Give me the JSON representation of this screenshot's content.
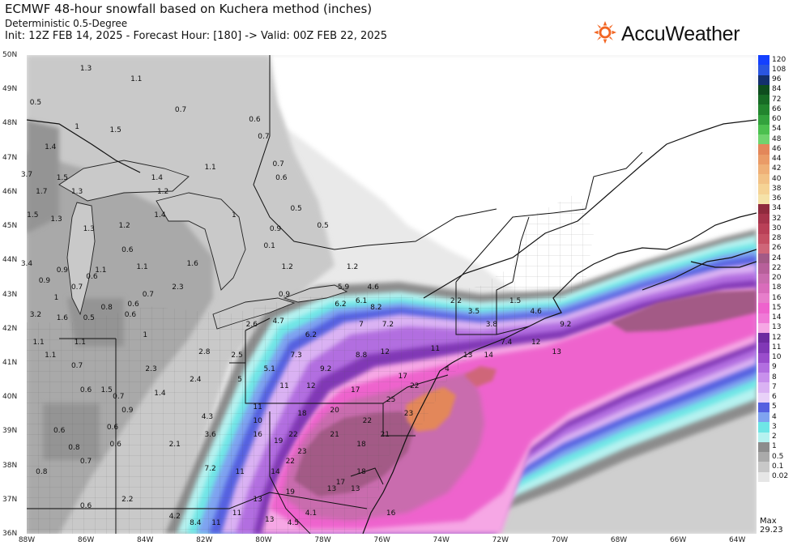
{
  "header": {
    "title": "ECMWF 48-hour snowfall based on Kuchera method (inches)",
    "subtitle": "Deterministic 0.5-Degree",
    "init_line": "Init: 12Z FEB 14, 2025 - Forecast Hour: [180] -> Valid: 00Z FEB 22, 2025"
  },
  "brand": {
    "name": "AccuWeather",
    "icon": "sun-icon",
    "color": "#f26522"
  },
  "axes": {
    "lat_labels": [
      "50N",
      "49N",
      "48N",
      "47N",
      "46N",
      "45N",
      "44N",
      "43N",
      "42N",
      "41N",
      "40N",
      "39N",
      "38N",
      "37N",
      "36N"
    ],
    "lon_labels": [
      "88W",
      "86W",
      "84W",
      "82W",
      "80W",
      "78W",
      "76W",
      "74W",
      "72W",
      "70W",
      "68W",
      "66W",
      "64W"
    ]
  },
  "legend": {
    "levels": [
      {
        "label": "120",
        "color": "#1440ff"
      },
      {
        "label": "108",
        "color": "#2a55e0"
      },
      {
        "label": "96",
        "color": "#13306e"
      },
      {
        "label": "84",
        "color": "#0e4d1e"
      },
      {
        "label": "72",
        "color": "#176b25"
      },
      {
        "label": "66",
        "color": "#22852e"
      },
      {
        "label": "60",
        "color": "#33a23d"
      },
      {
        "label": "54",
        "color": "#4cc04f"
      },
      {
        "label": "48",
        "color": "#70d46e"
      },
      {
        "label": "46",
        "color": "#e3875a"
      },
      {
        "label": "44",
        "color": "#ea9b67"
      },
      {
        "label": "42",
        "color": "#efb077"
      },
      {
        "label": "40",
        "color": "#f2c286"
      },
      {
        "label": "38",
        "color": "#f5d395"
      },
      {
        "label": "36",
        "color": "#f5e2a8"
      },
      {
        "label": "34",
        "color": "#8f2a3d"
      },
      {
        "label": "32",
        "color": "#a6344b"
      },
      {
        "label": "30",
        "color": "#b94057"
      },
      {
        "label": "28",
        "color": "#c55064"
      },
      {
        "label": "26",
        "color": "#cf6679"
      },
      {
        "label": "24",
        "color": "#a35a86"
      },
      {
        "label": "22",
        "color": "#b7609a"
      },
      {
        "label": "20",
        "color": "#c96cae"
      },
      {
        "label": "18",
        "color": "#d96cbb"
      },
      {
        "label": "16",
        "color": "#e77ecb"
      },
      {
        "label": "15",
        "color": "#ee63cd"
      },
      {
        "label": "14",
        "color": "#f07ad7"
      },
      {
        "label": "13",
        "color": "#f6a7e5"
      },
      {
        "label": "12",
        "color": "#6e2aa0"
      },
      {
        "label": "11",
        "color": "#8138b6"
      },
      {
        "label": "10",
        "color": "#9a4dcc"
      },
      {
        "label": "9",
        "color": "#b26ee0"
      },
      {
        "label": "8",
        "color": "#c890ec"
      },
      {
        "label": "7",
        "color": "#dab2f3"
      },
      {
        "label": "6",
        "color": "#e8d1f8"
      },
      {
        "label": "5",
        "color": "#5560e0"
      },
      {
        "label": "4",
        "color": "#7fa3f0"
      },
      {
        "label": "3",
        "color": "#6fe6e6"
      },
      {
        "label": "2",
        "color": "#b5f2f0"
      },
      {
        "label": "1",
        "color": "#8c8c8c"
      },
      {
        "label": "0.5",
        "color": "#aaaaaa"
      },
      {
        "label": "0.1",
        "color": "#c8c8c8"
      },
      {
        "label": "0.02",
        "color": "#e6e6e6"
      }
    ],
    "max_label": "Max",
    "max_value": "29.23"
  },
  "map": {
    "value_labels": [
      {
        "t": "1.3",
        "lon": -86.0,
        "lat": 49.6
      },
      {
        "t": "1.1",
        "lon": -84.3,
        "lat": 49.3
      },
      {
        "t": "0.5",
        "lon": -87.7,
        "lat": 48.6
      },
      {
        "t": "0.7",
        "lon": -82.8,
        "lat": 48.4
      },
      {
        "t": "0.6",
        "lon": -80.3,
        "lat": 48.1
      },
      {
        "t": "1",
        "lon": -86.3,
        "lat": 47.9
      },
      {
        "t": "1.5",
        "lon": -85.0,
        "lat": 47.8
      },
      {
        "t": "0.7",
        "lon": -80.0,
        "lat": 47.6
      },
      {
        "t": "1.4",
        "lon": -87.2,
        "lat": 47.3
      },
      {
        "t": "0.7",
        "lon": -79.5,
        "lat": 46.8
      },
      {
        "t": "1.1",
        "lon": -81.8,
        "lat": 46.7
      },
      {
        "t": "3.7",
        "lon": -88.0,
        "lat": 46.5
      },
      {
        "t": "1.5",
        "lon": -86.8,
        "lat": 46.4
      },
      {
        "t": "1.4",
        "lon": -83.6,
        "lat": 46.4
      },
      {
        "t": "0.6",
        "lon": -79.4,
        "lat": 46.4
      },
      {
        "t": "1.7",
        "lon": -87.5,
        "lat": 46.0
      },
      {
        "t": "1.3",
        "lon": -86.3,
        "lat": 46.0
      },
      {
        "t": "1.2",
        "lon": -83.4,
        "lat": 46.0
      },
      {
        "t": "0.5",
        "lon": -78.9,
        "lat": 45.5
      },
      {
        "t": "1.5",
        "lon": -87.8,
        "lat": 45.3
      },
      {
        "t": "1.3",
        "lon": -87.0,
        "lat": 45.2
      },
      {
        "t": "1.2",
        "lon": -84.7,
        "lat": 45.0
      },
      {
        "t": "1.4",
        "lon": -83.5,
        "lat": 45.3
      },
      {
        "t": "1",
        "lon": -81.0,
        "lat": 45.3
      },
      {
        "t": "0.5",
        "lon": -78.0,
        "lat": 45.0
      },
      {
        "t": "1.3",
        "lon": -85.9,
        "lat": 44.9
      },
      {
        "t": "0.9",
        "lon": -79.6,
        "lat": 44.9
      },
      {
        "t": "0.6",
        "lon": -84.6,
        "lat": 44.3
      },
      {
        "t": "0.1",
        "lon": -79.8,
        "lat": 44.4
      },
      {
        "t": "3.4",
        "lon": -88.0,
        "lat": 43.9
      },
      {
        "t": "1.6",
        "lon": -82.4,
        "lat": 43.9
      },
      {
        "t": "1.2",
        "lon": -79.2,
        "lat": 43.8
      },
      {
        "t": "1.1",
        "lon": -84.1,
        "lat": 43.8
      },
      {
        "t": "1.2",
        "lon": -77.0,
        "lat": 43.8
      },
      {
        "t": "0.9",
        "lon": -86.8,
        "lat": 43.7
      },
      {
        "t": "1.1",
        "lon": -85.5,
        "lat": 43.7
      },
      {
        "t": "0.9",
        "lon": -87.4,
        "lat": 43.4
      },
      {
        "t": "0.6",
        "lon": -85.8,
        "lat": 43.5
      },
      {
        "t": "0.7",
        "lon": -86.3,
        "lat": 43.2
      },
      {
        "t": "2.3",
        "lon": -82.9,
        "lat": 43.2
      },
      {
        "t": "5.9",
        "lon": -77.3,
        "lat": 43.2
      },
      {
        "t": "4.6",
        "lon": -76.3,
        "lat": 43.2
      },
      {
        "t": "0.9",
        "lon": -79.3,
        "lat": 43.0
      },
      {
        "t": "1",
        "lon": -87.0,
        "lat": 42.9
      },
      {
        "t": "0.7",
        "lon": -83.9,
        "lat": 43.0
      },
      {
        "t": "0.8",
        "lon": -85.3,
        "lat": 42.6
      },
      {
        "t": "0.6",
        "lon": -84.4,
        "lat": 42.7
      },
      {
        "t": "6.2",
        "lon": -77.4,
        "lat": 42.7
      },
      {
        "t": "6.1",
        "lon": -76.7,
        "lat": 42.8
      },
      {
        "t": "8.2",
        "lon": -76.2,
        "lat": 42.6
      },
      {
        "t": "2.2",
        "lon": -73.5,
        "lat": 42.8
      },
      {
        "t": "1.5",
        "lon": -71.5,
        "lat": 42.8
      },
      {
        "t": "3.2",
        "lon": -87.7,
        "lat": 42.4
      },
      {
        "t": "1.6",
        "lon": -86.8,
        "lat": 42.3
      },
      {
        "t": "0.5",
        "lon": -85.9,
        "lat": 42.3
      },
      {
        "t": "0.6",
        "lon": -84.5,
        "lat": 42.4
      },
      {
        "t": "3.5",
        "lon": -72.9,
        "lat": 42.5
      },
      {
        "t": "4.6",
        "lon": -70.8,
        "lat": 42.5
      },
      {
        "t": "2.6",
        "lon": -80.4,
        "lat": 42.1
      },
      {
        "t": "4.7",
        "lon": -79.5,
        "lat": 42.2
      },
      {
        "t": "7",
        "lon": -76.7,
        "lat": 42.1
      },
      {
        "t": "7.2",
        "lon": -75.8,
        "lat": 42.1
      },
      {
        "t": "3.8",
        "lon": -72.3,
        "lat": 42.1
      },
      {
        "t": "9.2",
        "lon": -69.8,
        "lat": 42.1
      },
      {
        "t": "1",
        "lon": -84.0,
        "lat": 41.8
      },
      {
        "t": "6.2",
        "lon": -78.4,
        "lat": 41.8
      },
      {
        "t": "7.4",
        "lon": -71.8,
        "lat": 41.6
      },
      {
        "t": "12",
        "lon": -70.8,
        "lat": 41.6
      },
      {
        "t": "1.1",
        "lon": -87.6,
        "lat": 41.6
      },
      {
        "t": "1.1",
        "lon": -86.2,
        "lat": 41.6
      },
      {
        "t": "2.8",
        "lon": -82.0,
        "lat": 41.3
      },
      {
        "t": "2.5",
        "lon": -80.9,
        "lat": 41.2
      },
      {
        "t": "7.3",
        "lon": -78.9,
        "lat": 41.2
      },
      {
        "t": "8.8",
        "lon": -76.7,
        "lat": 41.2
      },
      {
        "t": "12",
        "lon": -75.9,
        "lat": 41.3
      },
      {
        "t": "11",
        "lon": -74.2,
        "lat": 41.4
      },
      {
        "t": "13",
        "lon": -73.1,
        "lat": 41.2
      },
      {
        "t": "14",
        "lon": -72.4,
        "lat": 41.2
      },
      {
        "t": "13",
        "lon": -70.1,
        "lat": 41.3
      },
      {
        "t": "1.1",
        "lon": -87.2,
        "lat": 41.2
      },
      {
        "t": "0.7",
        "lon": -86.3,
        "lat": 40.9
      },
      {
        "t": "2.3",
        "lon": -83.8,
        "lat": 40.8
      },
      {
        "t": "5.1",
        "lon": -79.8,
        "lat": 40.8
      },
      {
        "t": "9.2",
        "lon": -77.9,
        "lat": 40.8
      },
      {
        "t": "4",
        "lon": -73.8,
        "lat": 40.8
      },
      {
        "t": "17",
        "lon": -75.3,
        "lat": 40.6
      },
      {
        "t": "2.4",
        "lon": -82.3,
        "lat": 40.5
      },
      {
        "t": "5",
        "lon": -80.8,
        "lat": 40.5
      },
      {
        "t": "11",
        "lon": -79.3,
        "lat": 40.3
      },
      {
        "t": "12",
        "lon": -78.4,
        "lat": 40.3
      },
      {
        "t": "17",
        "lon": -76.9,
        "lat": 40.2
      },
      {
        "t": "22",
        "lon": -74.9,
        "lat": 40.3
      },
      {
        "t": "0.6",
        "lon": -86.0,
        "lat": 40.2
      },
      {
        "t": "1.5",
        "lon": -85.3,
        "lat": 40.2
      },
      {
        "t": "0.7",
        "lon": -84.9,
        "lat": 40.0
      },
      {
        "t": "1.4",
        "lon": -83.5,
        "lat": 40.1
      },
      {
        "t": "25",
        "lon": -75.7,
        "lat": 39.9
      },
      {
        "t": "11",
        "lon": -80.2,
        "lat": 39.7
      },
      {
        "t": "18",
        "lon": -78.7,
        "lat": 39.5
      },
      {
        "t": "20",
        "lon": -77.6,
        "lat": 39.6
      },
      {
        "t": "23",
        "lon": -75.1,
        "lat": 39.5
      },
      {
        "t": "0.9",
        "lon": -84.6,
        "lat": 39.6
      },
      {
        "t": "4.3",
        "lon": -81.9,
        "lat": 39.4
      },
      {
        "t": "10",
        "lon": -80.2,
        "lat": 39.3
      },
      {
        "t": "22",
        "lon": -76.5,
        "lat": 39.3
      },
      {
        "t": "0.6",
        "lon": -86.9,
        "lat": 39.0
      },
      {
        "t": "0.6",
        "lon": -85.1,
        "lat": 39.1
      },
      {
        "t": "3.6",
        "lon": -81.8,
        "lat": 38.9
      },
      {
        "t": "16",
        "lon": -80.2,
        "lat": 38.9
      },
      {
        "t": "22",
        "lon": -79.0,
        "lat": 38.9
      },
      {
        "t": "21",
        "lon": -77.6,
        "lat": 38.9
      },
      {
        "t": "21",
        "lon": -75.9,
        "lat": 38.9
      },
      {
        "t": "19",
        "lon": -79.5,
        "lat": 38.7
      },
      {
        "t": "23",
        "lon": -78.7,
        "lat": 38.4
      },
      {
        "t": "18",
        "lon": -76.7,
        "lat": 38.6
      },
      {
        "t": "0.8",
        "lon": -86.4,
        "lat": 38.5
      },
      {
        "t": "0.6",
        "lon": -85.0,
        "lat": 38.6
      },
      {
        "t": "2.1",
        "lon": -83.0,
        "lat": 38.6
      },
      {
        "t": "22",
        "lon": -79.1,
        "lat": 38.1
      },
      {
        "t": "0.7",
        "lon": -86.0,
        "lat": 38.1
      },
      {
        "t": "7.2",
        "lon": -81.8,
        "lat": 37.9
      },
      {
        "t": "11",
        "lon": -80.8,
        "lat": 37.8
      },
      {
        "t": "14",
        "lon": -79.6,
        "lat": 37.8
      },
      {
        "t": "18",
        "lon": -76.7,
        "lat": 37.8
      },
      {
        "t": "0.8",
        "lon": -87.5,
        "lat": 37.8
      },
      {
        "t": "17",
        "lon": -77.4,
        "lat": 37.5
      },
      {
        "t": "13",
        "lon": -77.7,
        "lat": 37.3
      },
      {
        "t": "13",
        "lon": -76.9,
        "lat": 37.3
      },
      {
        "t": "19",
        "lon": -79.1,
        "lat": 37.2
      },
      {
        "t": "13",
        "lon": -80.2,
        "lat": 37.0
      },
      {
        "t": "2.2",
        "lon": -84.6,
        "lat": 37.0
      },
      {
        "t": "0.6",
        "lon": -86.0,
        "lat": 36.8
      },
      {
        "t": "11",
        "lon": -80.9,
        "lat": 36.6
      },
      {
        "t": "13",
        "lon": -79.8,
        "lat": 36.4
      },
      {
        "t": "4.5",
        "lon": -79.0,
        "lat": 36.3
      },
      {
        "t": "4.1",
        "lon": -78.4,
        "lat": 36.6
      },
      {
        "t": "16",
        "lon": -75.7,
        "lat": 36.6
      },
      {
        "t": "4.2",
        "lon": -83.0,
        "lat": 36.5
      },
      {
        "t": "8.4",
        "lon": -82.3,
        "lat": 36.3
      },
      {
        "t": "11",
        "lon": -81.6,
        "lat": 36.3
      }
    ]
  }
}
